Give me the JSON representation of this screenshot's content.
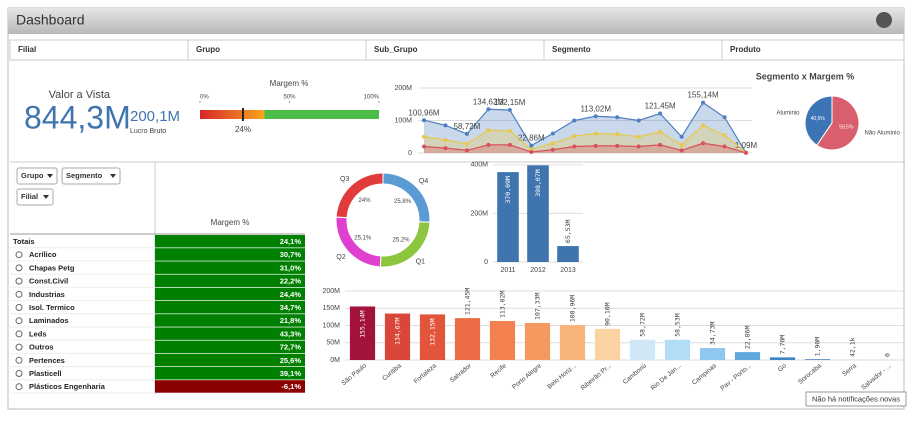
{
  "header": {
    "title": "Dashboard"
  },
  "filters": [
    "Filial",
    "Grupo",
    "Sub_Grupo",
    "Segmento",
    "Produto"
  ],
  "kpi": {
    "label": "Valor a Vista",
    "value": "844,3M",
    "secondary_value": "200,1M",
    "secondary_label": "Lucro Bruto"
  },
  "gauge": {
    "title": "Margem %",
    "xlim": [
      0,
      100
    ],
    "xticks": [
      {
        "value": 0,
        "label": "0%"
      },
      {
        "value": 50,
        "label": "50%"
      },
      {
        "value": 100,
        "label": "100%"
      }
    ],
    "value": 24,
    "value_label": "24%",
    "bands": [
      {
        "to": 36,
        "colors": [
          "#d7262b",
          "#f8a51d"
        ]
      },
      {
        "to": 100,
        "colors": [
          "#4cbb47",
          "#4cbb47"
        ]
      }
    ]
  },
  "area_chart": {
    "type": "area",
    "ylim": [
      0,
      200
    ],
    "yticks": [
      0,
      {
        "value": 100,
        "label": "100M"
      },
      {
        "value": 200,
        "label": "200M"
      }
    ],
    "series": [
      {
        "color": "#4f7fc0",
        "values": [
          100.96,
          85,
          58.72,
          134.62,
          132.15,
          22.86,
          60,
          100,
          113.02,
          110,
          100,
          121.45,
          50,
          155.14,
          110,
          1.09
        ],
        "value_labels": [
          "100,96M",
          null,
          "58,72M",
          "134,62M",
          "132,15M",
          "22,86M",
          null,
          null,
          "113,02M",
          null,
          null,
          "121,45M",
          null,
          "155,14M",
          null,
          "1,09M"
        ]
      },
      {
        "color": "#e8c84a",
        "values": [
          50,
          40,
          28,
          70,
          68,
          10,
          30,
          52,
          60,
          58,
          50,
          65,
          25,
          85,
          55,
          1
        ]
      },
      {
        "color": "#d9505a",
        "values": [
          20,
          15,
          8,
          25,
          25,
          3,
          10,
          20,
          22,
          22,
          20,
          25,
          8,
          30,
          20,
          0.5
        ]
      }
    ]
  },
  "pie": {
    "type": "pie",
    "title": "Segmento x Margem %",
    "categories": [
      "Aluminio",
      "Não Aluminio"
    ],
    "values": [
      40.5,
      59.5
    ],
    "value_labels": [
      "40,5%",
      "59,5%"
    ],
    "colors": [
      "#3c74b5",
      "#d95f6e"
    ]
  },
  "donut": {
    "type": "donut",
    "categories": [
      "Q4",
      "Q1",
      "Q2",
      "Q3"
    ],
    "values": [
      25.8,
      25.2,
      25.1,
      24
    ],
    "value_labels": [
      "25,8%",
      "25,2%",
      "25,1%",
      "24%"
    ],
    "colors": [
      "#5b9bd5",
      "#8cc63f",
      "#e040d0",
      "#e23b3b"
    ]
  },
  "bar_year": {
    "type": "bar",
    "categories": [
      "2011",
      "2012",
      "2013"
    ],
    "values": [
      370.09,
      398.07,
      65.53
    ],
    "value_labels": [
      "370,09M",
      "398,07M",
      "65,53M"
    ],
    "color": "#3f74ae",
    "ylim": [
      0,
      420
    ],
    "yticks": [
      0,
      {
        "value": 200,
        "label": "200M"
      },
      {
        "value": 400,
        "label": "400M"
      }
    ]
  },
  "bar_city": {
    "type": "bar",
    "categories": [
      "São Paulo",
      "Curitiba",
      "Fortaleza",
      "Salvador",
      "Recife",
      "Porto Alegre",
      "Belo Horiz...",
      "Ribeirão Pr...",
      "Camboriú",
      "Rio De Jan...",
      "Campinas",
      "Pav - Porto...",
      "Go",
      "Sorocaba",
      "Serra",
      "Salvador - ..."
    ],
    "values": [
      155.14,
      134.67,
      132.15,
      121.45,
      113.02,
      107.33,
      100.96,
      90.1,
      58.72,
      58.53,
      34.73,
      22.86,
      7.7,
      1.9,
      0.0421,
      0
    ],
    "value_labels": [
      "155,14M",
      "134,67M",
      "132,15M",
      "121,45M",
      "113,02M",
      "107,33M",
      "100,96M",
      "90,10M",
      "58,72M",
      "58,53M",
      "34,73M",
      "22,86M",
      "7,70M",
      "1,90M",
      "42,1k",
      "0"
    ],
    "colors": [
      "#a3123a",
      "#d8473a",
      "#e3553b",
      "#ec6b44",
      "#f2814f",
      "#f59a5e",
      "#f8b378",
      "#fbd2a2",
      "#cfe7f7",
      "#b3dcf7",
      "#8fc8ee",
      "#5fa8dd",
      "#3f86c8",
      "#2a66a8",
      "#1c4f8e",
      "#153d74"
    ],
    "ylim": [
      0,
      200
    ],
    "yticks": [
      {
        "value": 0,
        "label": "0M"
      },
      {
        "value": 50,
        "label": "50M"
      },
      {
        "value": 100,
        "label": "100M"
      },
      {
        "value": 150,
        "label": "150M"
      },
      {
        "value": 200,
        "label": "200M"
      }
    ]
  },
  "table": {
    "filter_buttons": [
      "Grupo",
      "Segmento",
      "Filial"
    ],
    "column": "Margem %",
    "color": "#008000",
    "negative_color": "#8b0000",
    "rows": [
      [
        "Totais",
        "24,1%"
      ],
      [
        "Acrílico",
        "30,7%"
      ],
      [
        "Chapas Petg",
        "31,0%"
      ],
      [
        "Const.Civil",
        "22,2%"
      ],
      [
        "Industrias",
        "24,4%"
      ],
      [
        "Isol. Termico",
        "34,7%"
      ],
      [
        "Laminados",
        "21,8%"
      ],
      [
        "Leds",
        "43,3%"
      ],
      [
        "Outros",
        "72,7%"
      ],
      [
        "Pertences",
        "25,6%"
      ],
      [
        "Plasticell",
        "39,1%"
      ],
      [
        "Plásticos Engenharia",
        "-6,1%"
      ]
    ]
  },
  "notification": "Não há notificações novas"
}
